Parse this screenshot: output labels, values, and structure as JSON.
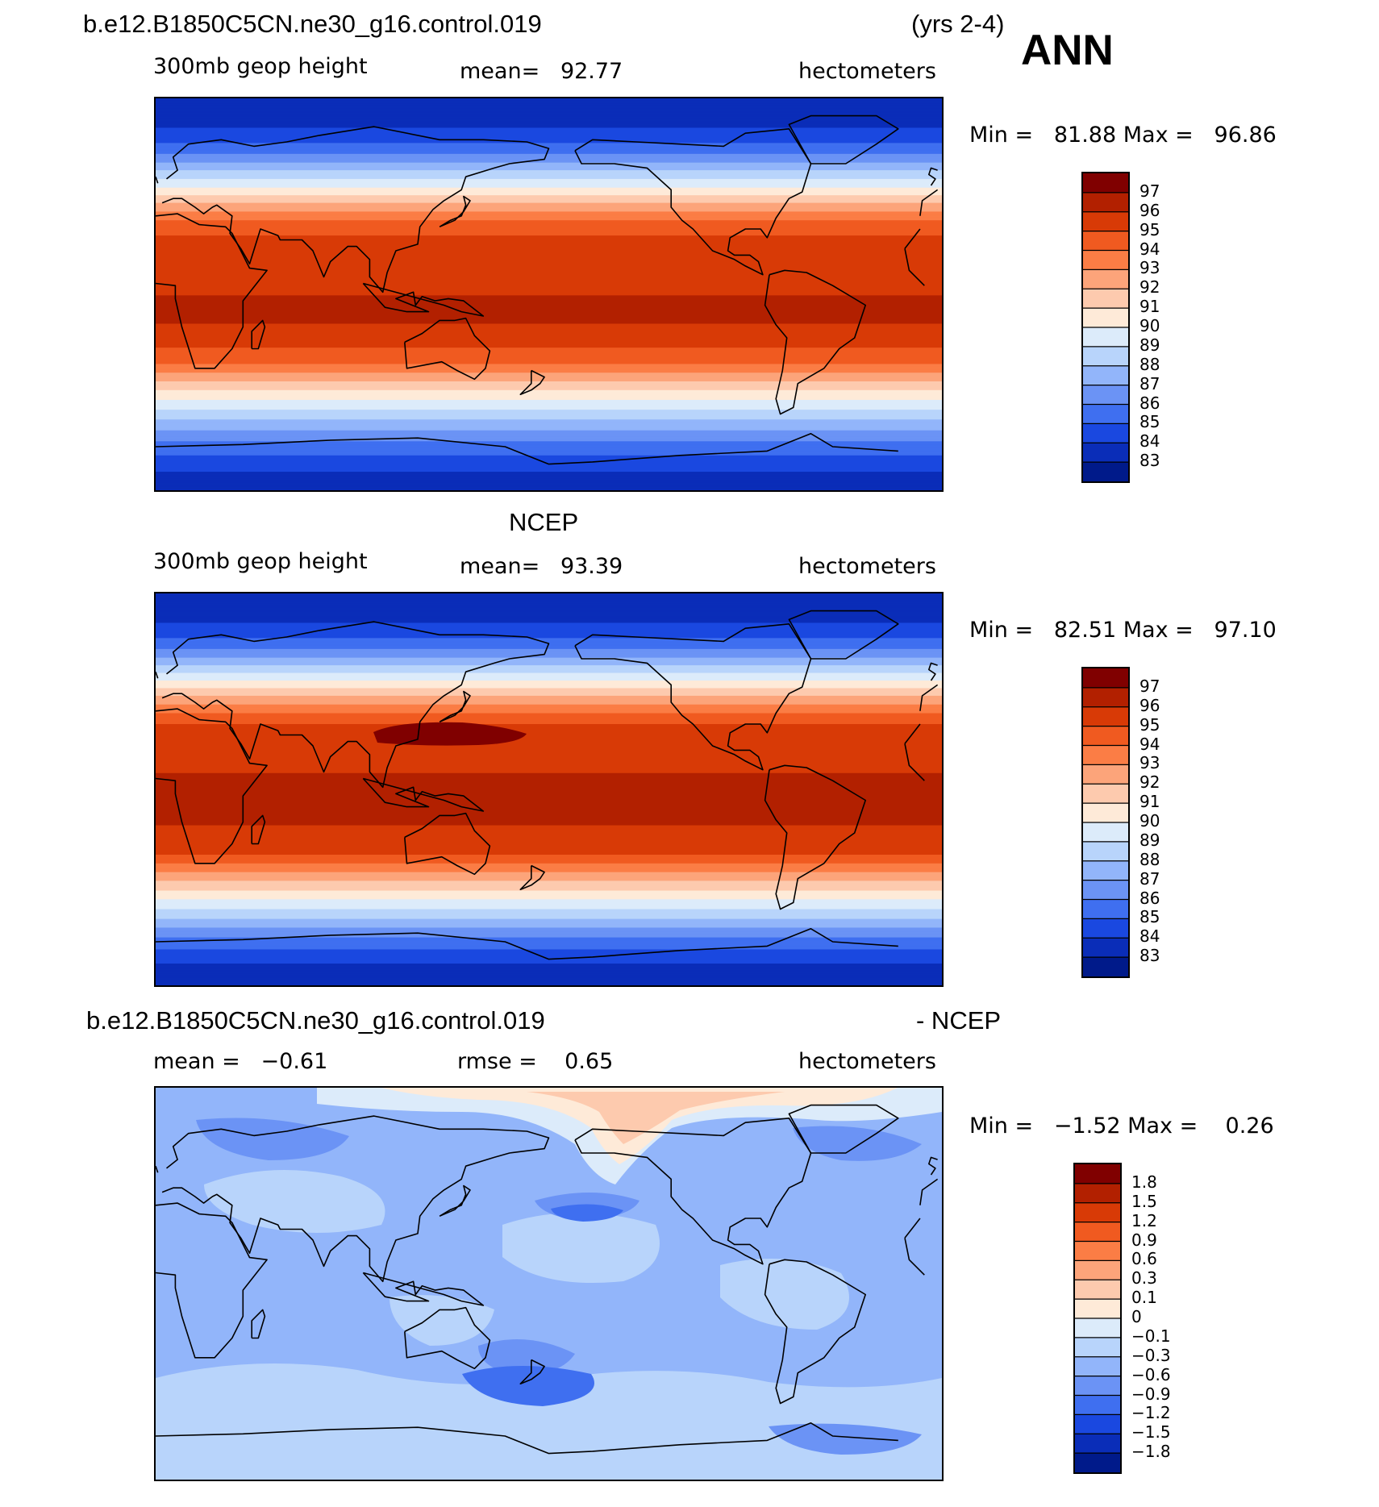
{
  "header": {
    "case_name": "b.e12.B1850C5CN.ne30_g16.control.019",
    "years": "(yrs 2-4)",
    "season": "ANN"
  },
  "panels": [
    {
      "id": "model",
      "title": "",
      "field": "300mb geop height",
      "mean_text": "mean=   92.77",
      "units": "hectometers",
      "minmax_text": "Min =   81.88 Max =   96.86"
    },
    {
      "id": "obs",
      "title": "NCEP",
      "field": "300mb geop height",
      "mean_text": "mean=   93.39",
      "units": "hectometers",
      "minmax_text": "Min =   82.51 Max =   97.10"
    },
    {
      "id": "diff",
      "title_left": "b.e12.B1850C5CN.ne30_g16.control.019",
      "title_right": "- NCEP",
      "mean_text": "mean =   −0.61",
      "rmse_text": "rmse =    0.65",
      "units": "hectometers",
      "minmax_text": "Min =   −1.52 Max =    0.26"
    }
  ],
  "chart_data": [
    {
      "type": "heatmap",
      "title": "b.e12.B1850C5CN.ne30_g16.control.019  300mb geop height (yrs 2-4) ANN",
      "units": "hectometers",
      "mean": 92.77,
      "min": 81.88,
      "max": 96.86,
      "colorbar_levels": [
        97,
        96,
        95,
        94,
        93,
        92,
        91,
        90,
        89,
        88,
        87,
        86,
        85,
        84,
        83
      ],
      "colorbar_colors": [
        "#800000",
        "#b22000",
        "#d83a06",
        "#f05a20",
        "#fb7d45",
        "#fca47a",
        "#fdcaae",
        "#feead8",
        "#dcebfa",
        "#b8d4fb",
        "#92b5fa",
        "#6b93f5",
        "#3f6ff0",
        "#1a48e0",
        "#0a2db8",
        "#001a8a"
      ],
      "latitude_profile_values": [
        83.5,
        85.5,
        88.5,
        91.5,
        94.5,
        96.3,
        95.2,
        94.5,
        92.5,
        90.5,
        88.5,
        86.5,
        84.5,
        83.0
      ],
      "latitude_profile_lats": [
        -85,
        -70,
        -55,
        -42,
        -30,
        -10,
        25,
        32,
        40,
        47,
        55,
        62,
        72,
        85
      ]
    },
    {
      "type": "heatmap",
      "title": "NCEP 300mb geop height ANN",
      "units": "hectometers",
      "mean": 93.39,
      "min": 82.51,
      "max": 97.1,
      "colorbar_levels": [
        97,
        96,
        95,
        94,
        93,
        92,
        91,
        90,
        89,
        88,
        87,
        86,
        85,
        84,
        83
      ],
      "colorbar_colors": [
        "#800000",
        "#b22000",
        "#d83a06",
        "#f05a20",
        "#fb7d45",
        "#fca47a",
        "#fdcaae",
        "#feead8",
        "#dcebfa",
        "#b8d4fb",
        "#92b5fa",
        "#6b93f5",
        "#3f6ff0",
        "#1a48e0",
        "#0a2db8",
        "#001a8a"
      ],
      "latitude_profile_values": [
        83.2,
        85.5,
        89.0,
        92.0,
        95.0,
        96.5,
        95.5,
        94.8,
        92.8,
        90.8,
        88.5,
        86.5,
        84.5,
        83.0
      ],
      "latitude_profile_lats": [
        -85,
        -70,
        -55,
        -42,
        -30,
        -10,
        25,
        32,
        40,
        47,
        55,
        62,
        72,
        85
      ]
    },
    {
      "type": "heatmap",
      "title": "b.e12.B1850C5CN.ne30_g16.control.019 - NCEP",
      "units": "hectometers",
      "mean": -0.61,
      "rmse": 0.65,
      "min": -1.52,
      "max": 0.26,
      "colorbar_levels": [
        "1.8",
        "1.5",
        "1.2",
        "0.9",
        "0.6",
        "0.3",
        "0.1",
        "0",
        "−0.1",
        "−0.3",
        "−0.6",
        "−0.9",
        "−1.2",
        "−1.5",
        "−1.8"
      ],
      "colorbar_colors": [
        "#800000",
        "#b22000",
        "#d83a06",
        "#f05a20",
        "#fb7d45",
        "#fca47a",
        "#fdcaae",
        "#feead8",
        "#dcebfa",
        "#b8d4fb",
        "#92b5fa",
        "#6b93f5",
        "#3f6ff0",
        "#1a48e0",
        "#0a2db8",
        "#001a8a"
      ]
    }
  ]
}
